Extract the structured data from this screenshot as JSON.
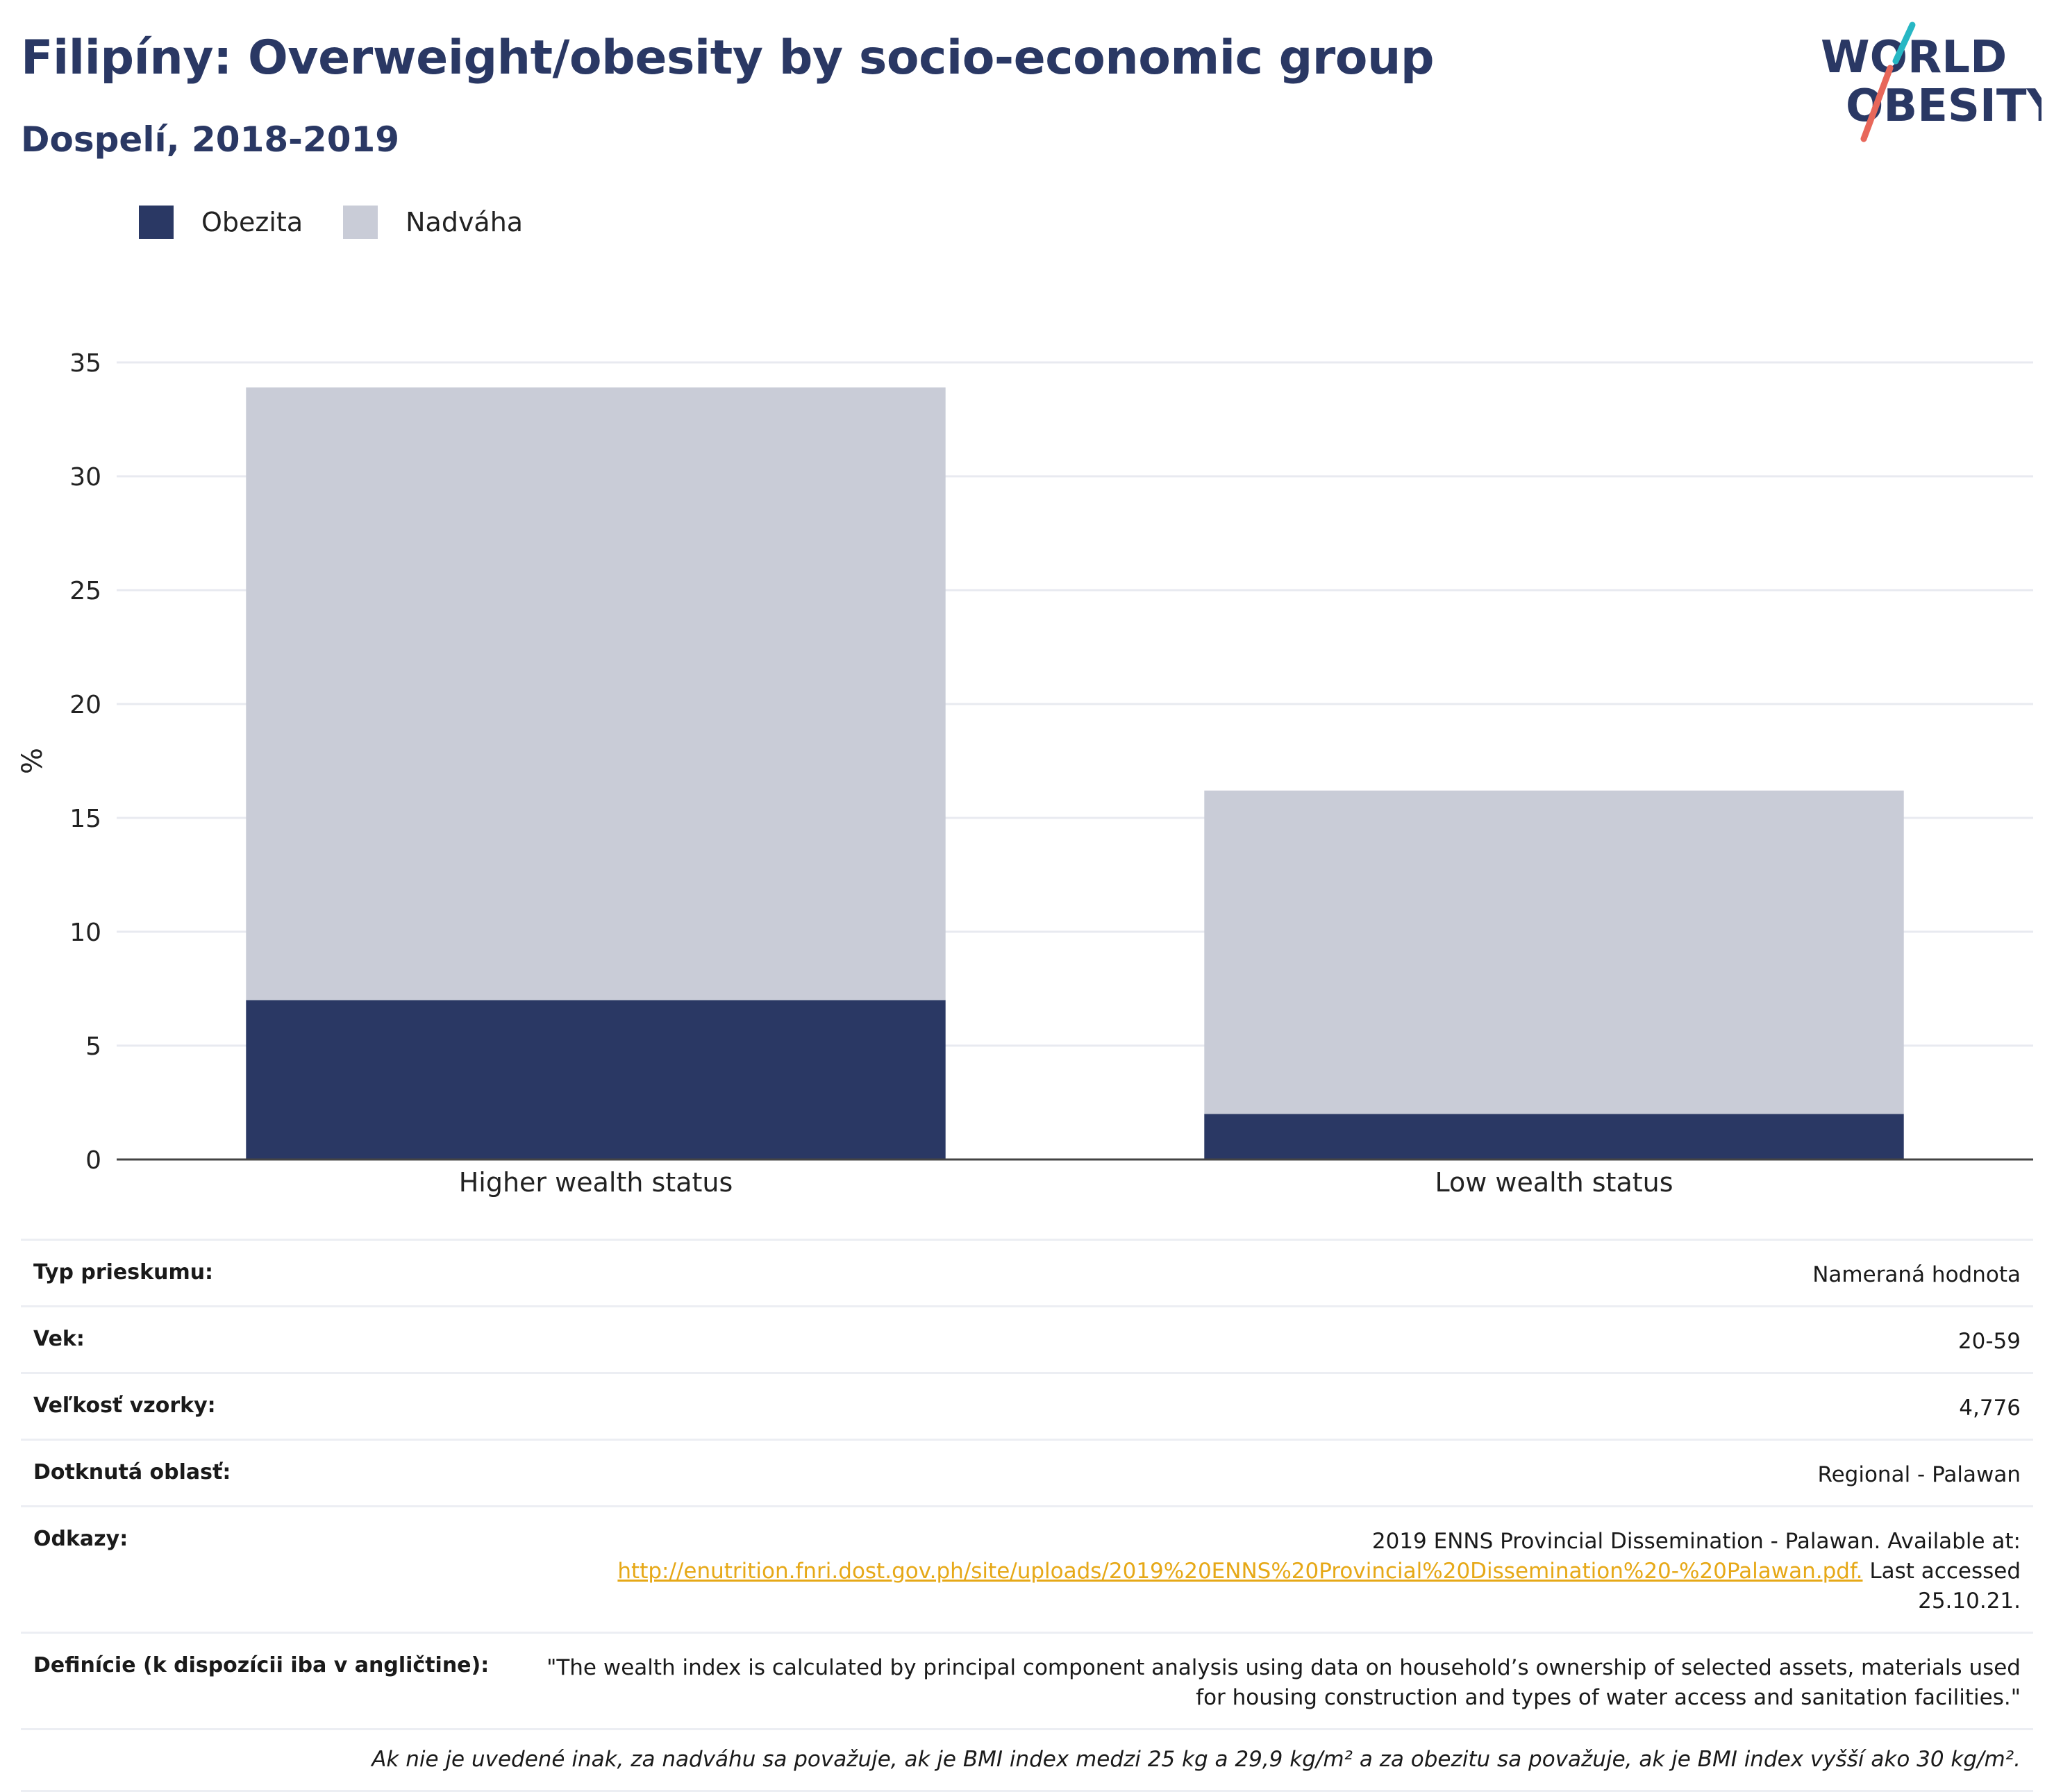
{
  "header": {
    "title": "Filipíny: Overweight/obesity by socio-economic group",
    "subtitle": "Dospelí, 2018-2019"
  },
  "logo": {
    "line1": "WORLD",
    "line2": "OBESITY"
  },
  "legend": [
    {
      "label": "Obezita",
      "color": "#2a3864"
    },
    {
      "label": "Nadváha",
      "color": "#c9ccd7"
    }
  ],
  "chart_data": {
    "type": "bar",
    "stacked": true,
    "categories": [
      "Higher wealth status",
      "Low wealth status"
    ],
    "series": [
      {
        "name": "Obezita",
        "values": [
          7.0,
          2.0
        ],
        "color": "#2a3864"
      },
      {
        "name": "Nadváha",
        "values": [
          26.9,
          14.2
        ],
        "color": "#c9ccd7"
      }
    ],
    "ylabel": "%",
    "ylim": [
      0,
      35
    ],
    "yticks": [
      0,
      5,
      10,
      15,
      20,
      25,
      30,
      35
    ],
    "grid": true,
    "legend_position": "top-left"
  },
  "info": {
    "survey_type": {
      "label": "Typ prieskumu:",
      "value": "Nameraná hodnota"
    },
    "age": {
      "label": "Vek:",
      "value": "20-59"
    },
    "sample_size": {
      "label": "Veľkosť vzorky:",
      "value": "4,776"
    },
    "area": {
      "label": "Dotknutá oblasť:",
      "value": "Regional - Palawan"
    },
    "references": {
      "label": "Odkazy:",
      "text_before": "2019 ENNS Provincial Dissemination - Palawan. Available at:",
      "link": "http://enutrition.fnri.dost.gov.ph/site/uploads/2019%20ENNS%20Provincial%20Dissemination%20-%20Palawan.pdf.",
      "text_after": "Last accessed",
      "date": "25.10.21."
    },
    "definitions": {
      "label": "Definície (k dispozícii iba v angličtine):",
      "line1": "\"The wealth index is calculated by principal component analysis using data on household’s ownership of selected assets, materials used",
      "line2": "for housing construction and types of water access and sanitation facilities.\""
    },
    "note": "Ak nie je uvedené inak, za nadváhu sa považuje, ak je BMI index medzi 25 kg a 29,9 kg/m² a za obezitu sa považuje, ak je BMI index vyšší ako 30 kg/m²."
  }
}
